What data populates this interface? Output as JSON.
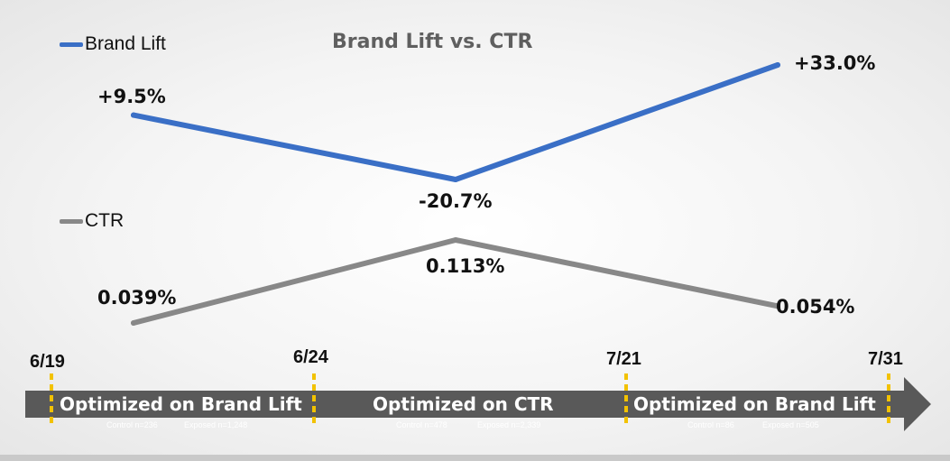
{
  "title": "Brand Lift vs. CTR",
  "colors": {
    "brand_lift": "#3a6fc6",
    "ctr": "#888888",
    "arrow": "#595959",
    "marker": "#f2c200"
  },
  "chart_data": [
    {
      "type": "line",
      "title": "Brand Lift vs. CTR",
      "series": [
        {
          "name": "Brand Lift",
          "values": [
            9.5,
            -20.7,
            33.0
          ],
          "labels": [
            "+9.5%",
            "-20.7%",
            "+33.0%"
          ]
        }
      ],
      "categories": [
        "Optimized on Brand Lift",
        "Optimized on CTR",
        "Optimized on Brand Lift"
      ]
    },
    {
      "type": "line",
      "series": [
        {
          "name": "CTR",
          "values": [
            0.039,
            0.113,
            0.054
          ],
          "labels": [
            "0.039%",
            "0.113%",
            "0.054%"
          ]
        }
      ],
      "categories": [
        "Optimized on Brand Lift",
        "Optimized on CTR",
        "Optimized on Brand Lift"
      ]
    }
  ],
  "timeline": {
    "dates": [
      "6/19",
      "6/24",
      "7/21",
      "7/31"
    ],
    "phases": [
      {
        "label": "Optimized on Brand Lift",
        "control": "Control n=236",
        "exposed": "Exposed n=1,248"
      },
      {
        "label": "Optimized on CTR",
        "control": "Control n=478",
        "exposed": "Exposed n=2,339"
      },
      {
        "label": "Optimized on Brand Lift",
        "control": "Control n=86",
        "exposed": "Exposed n=505"
      }
    ]
  }
}
